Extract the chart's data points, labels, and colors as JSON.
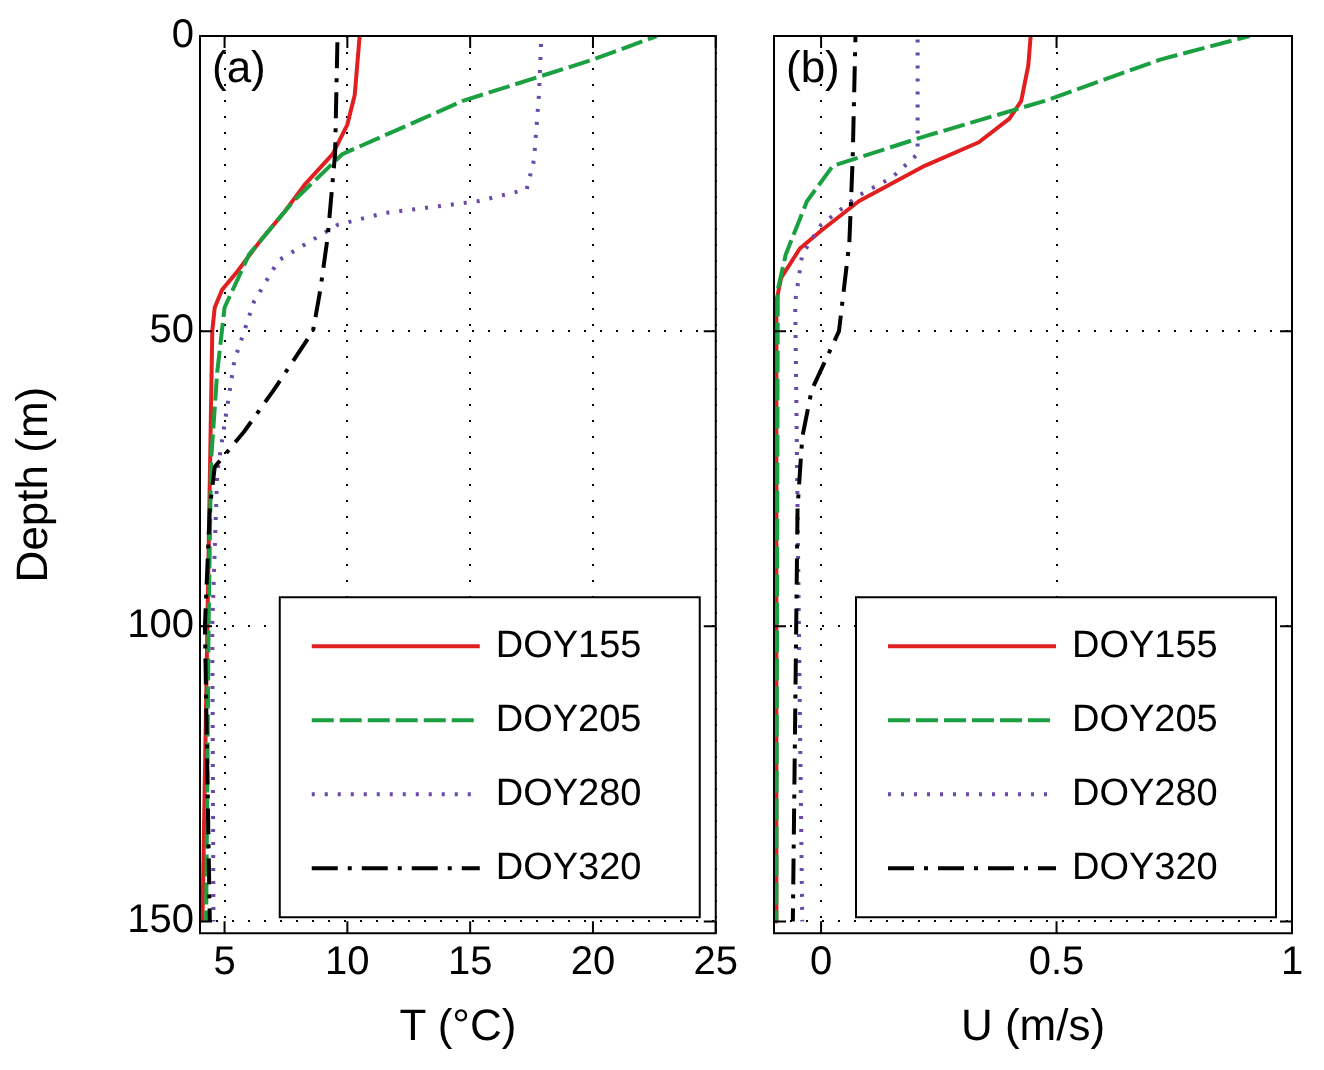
{
  "chart_data": [
    {
      "type": "line",
      "xlabel": "T (°C)",
      "ylabel": "Depth (m)",
      "annotations": [
        "(a)"
      ],
      "xlim": [
        4,
        25
      ],
      "xticks": [
        5,
        10,
        15,
        20,
        25
      ],
      "ylim": [
        152,
        0
      ],
      "yticks": [
        0,
        50,
        100,
        150
      ],
      "grid": true,
      "legend": "bottom right",
      "series": [
        {
          "name": "DOY155",
          "color": "#e02020",
          "line_style": "solid",
          "x": [
            10.5,
            10.4,
            10.3,
            10.0,
            9.4,
            8.3,
            7.4,
            6.4,
            5.5,
            4.9,
            4.6,
            4.5,
            4.4,
            4.3,
            4.1
          ],
          "values": [
            0,
            5,
            10,
            15,
            20,
            25,
            30,
            35,
            40,
            43,
            46,
            50,
            75,
            100,
            150
          ]
        },
        {
          "name": "DOY205",
          "color": "#1aa040",
          "line_style": "dashed",
          "x": [
            22.6,
            20.0,
            14.7,
            9.8,
            7.8,
            6.0,
            5.0,
            4.7,
            4.45,
            4.35,
            4.25
          ],
          "values": [
            0,
            4,
            11,
            20,
            28,
            37,
            46,
            57,
            72,
            100,
            150
          ]
        },
        {
          "name": "DOY280",
          "color": "#6a4aa8",
          "line_style": "dotted",
          "x": [
            17.9,
            17.8,
            17.6,
            17.3,
            15.3,
            11.5,
            9.6,
            7.2,
            6.2,
            5.8,
            5.4,
            5.1,
            4.7,
            4.5,
            4.55
          ],
          "values": [
            0,
            10,
            21,
            26,
            28,
            30,
            32,
            38,
            45,
            50,
            55,
            63,
            74,
            100,
            150
          ]
        },
        {
          "name": "DOY320",
          "color": "#000000",
          "line_style": "dashdot",
          "x": [
            9.6,
            9.5,
            9.2,
            8.9,
            8.6,
            7.0,
            5.8,
            4.6,
            4.4,
            4.2,
            4.4
          ],
          "values": [
            0,
            20,
            34,
            43,
            50,
            60,
            67,
            73,
            80,
            100,
            150
          ]
        }
      ]
    },
    {
      "type": "line",
      "xlabel": "U (m/s)",
      "annotations": [
        "(b)"
      ],
      "xlim": [
        -0.1,
        1
      ],
      "xticks": [
        0,
        0.5,
        1
      ],
      "ylim": [
        152,
        0
      ],
      "yticks": [
        0,
        50,
        100,
        150
      ],
      "tick_labels": "x",
      "grid": true,
      "legend": "bottom right",
      "series": [
        {
          "name": "DOY155",
          "color": "#e02020",
          "line_style": "solid",
          "x": [
            0.445,
            0.44,
            0.425,
            0.4,
            0.335,
            0.22,
            0.08,
            0,
            -0.045,
            -0.085,
            -0.095,
            -0.095
          ],
          "values": [
            0,
            5,
            11,
            14,
            18,
            22,
            28,
            33,
            36,
            41,
            45,
            150
          ]
        },
        {
          "name": "DOY205",
          "color": "#1aa040",
          "line_style": "dashed",
          "x": [
            0.91,
            0.72,
            0.475,
            0.22,
            0.025,
            -0.03,
            -0.075,
            -0.092,
            -0.095
          ],
          "values": [
            0,
            4,
            11,
            17,
            22,
            28,
            37,
            43,
            150
          ]
        },
        {
          "name": "DOY280",
          "color": "#6a4aa8",
          "line_style": "dotted",
          "x": [
            0.205,
            0.205,
            0.15,
            0.08,
            0,
            -0.04,
            -0.055,
            -0.04
          ],
          "values": [
            0,
            20,
            24,
            27,
            32,
            37,
            45,
            150
          ]
        },
        {
          "name": "DOY320",
          "color": "#000000",
          "line_style": "dashdot",
          "x": [
            0.073,
            0.067,
            0.06,
            0.038,
            -0.02,
            -0.04,
            -0.05,
            -0.06
          ],
          "values": [
            0,
            21,
            35,
            50,
            60,
            68,
            80,
            150
          ]
        }
      ]
    }
  ]
}
